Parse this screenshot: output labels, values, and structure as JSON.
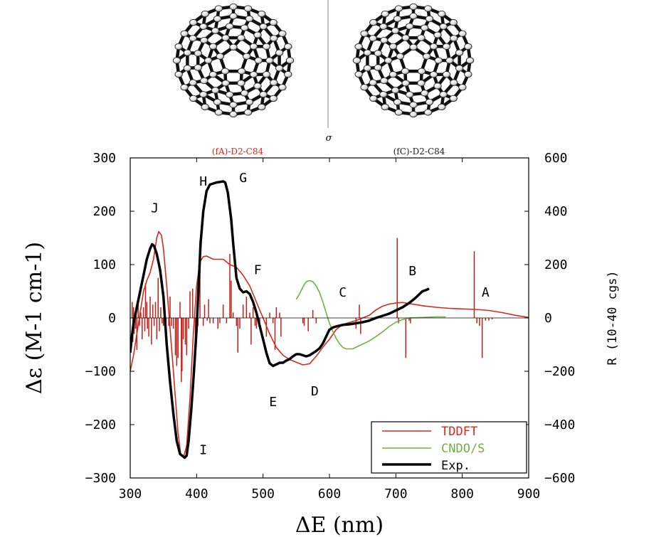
{
  "header": {
    "left_label": "(fA)-D2-C84",
    "right_label": "(fC)-D2-C84",
    "mirror_symbol": "σ"
  },
  "colors": {
    "tddft": "#d42a1e",
    "cndo": "#6db33f",
    "exp": "#000000",
    "sticks": "#c0201a",
    "left_label": "#d42a1e",
    "right_label": "#222222"
  },
  "chart_data": {
    "type": "line",
    "xlabel": "ΔE (nm)",
    "ylabel": "Δε (M-1 cm-1)",
    "y2label": "R (10-40 cgs)",
    "xlim": [
      300,
      900
    ],
    "ylim": [
      -300,
      300
    ],
    "y2lim": [
      -600,
      600
    ],
    "x_ticks": [
      300,
      400,
      500,
      600,
      700,
      800,
      900
    ],
    "y_ticks": [
      -300,
      -200,
      -100,
      0,
      100,
      200,
      300
    ],
    "y2_ticks": [
      -600,
      -400,
      -200,
      0,
      200,
      400,
      600
    ],
    "legend_position": "bottom-right",
    "annotations": [
      {
        "text": "J",
        "x": 337,
        "y": 198
      },
      {
        "text": "H",
        "x": 410,
        "y": 248
      },
      {
        "text": "G",
        "x": 470,
        "y": 255
      },
      {
        "text": "F",
        "x": 492,
        "y": 82
      },
      {
        "text": "C",
        "x": 620,
        "y": 40
      },
      {
        "text": "B",
        "x": 725,
        "y": 80
      },
      {
        "text": "A",
        "x": 835,
        "y": 40
      },
      {
        "text": "E",
        "x": 515,
        "y": -165
      },
      {
        "text": "D",
        "x": 578,
        "y": -145
      },
      {
        "text": "I",
        "x": 410,
        "y": -255
      }
    ],
    "series": [
      {
        "name": "TDDFT",
        "axis": "left",
        "points": [
          [
            300,
            -100
          ],
          [
            305,
            -70
          ],
          [
            310,
            -30
          ],
          [
            315,
            10
          ],
          [
            320,
            50
          ],
          [
            325,
            70
          ],
          [
            330,
            85
          ],
          [
            335,
            110
          ],
          [
            340,
            150
          ],
          [
            343,
            162
          ],
          [
            347,
            155
          ],
          [
            350,
            130
          ],
          [
            355,
            60
          ],
          [
            360,
            -20
          ],
          [
            365,
            -100
          ],
          [
            368,
            -150
          ],
          [
            372,
            -215
          ],
          [
            376,
            -255
          ],
          [
            380,
            -262
          ],
          [
            385,
            -240
          ],
          [
            390,
            -150
          ],
          [
            395,
            -30
          ],
          [
            400,
            60
          ],
          [
            405,
            105
          ],
          [
            410,
            115
          ],
          [
            415,
            116
          ],
          [
            425,
            110
          ],
          [
            440,
            110
          ],
          [
            450,
            100
          ],
          [
            460,
            95
          ],
          [
            470,
            80
          ],
          [
            480,
            60
          ],
          [
            490,
            30
          ],
          [
            500,
            0
          ],
          [
            510,
            -30
          ],
          [
            520,
            -55
          ],
          [
            530,
            -70
          ],
          [
            540,
            -78
          ],
          [
            550,
            -83
          ],
          [
            560,
            -88
          ],
          [
            570,
            -86
          ],
          [
            580,
            -72
          ],
          [
            590,
            -55
          ],
          [
            600,
            -40
          ],
          [
            610,
            -22
          ],
          [
            620,
            -12
          ],
          [
            640,
            -5
          ],
          [
            650,
            0
          ],
          [
            660,
            5
          ],
          [
            670,
            15
          ],
          [
            680,
            22
          ],
          [
            690,
            26
          ],
          [
            700,
            28
          ],
          [
            710,
            29
          ],
          [
            720,
            27
          ],
          [
            740,
            23
          ],
          [
            760,
            20
          ],
          [
            780,
            18
          ],
          [
            800,
            17
          ],
          [
            820,
            16
          ],
          [
            840,
            14
          ],
          [
            860,
            10
          ],
          [
            880,
            5
          ],
          [
            900,
            1
          ]
        ]
      },
      {
        "name": "CNDO/S",
        "axis": "left",
        "points": [
          [
            550,
            35
          ],
          [
            555,
            45
          ],
          [
            560,
            58
          ],
          [
            565,
            68
          ],
          [
            570,
            70
          ],
          [
            575,
            68
          ],
          [
            580,
            60
          ],
          [
            585,
            48
          ],
          [
            590,
            30
          ],
          [
            595,
            10
          ],
          [
            600,
            -10
          ],
          [
            605,
            -25
          ],
          [
            610,
            -38
          ],
          [
            615,
            -48
          ],
          [
            620,
            -55
          ],
          [
            625,
            -58
          ],
          [
            635,
            -58
          ],
          [
            645,
            -52
          ],
          [
            660,
            -43
          ],
          [
            670,
            -35
          ],
          [
            680,
            -26
          ],
          [
            690,
            -16
          ],
          [
            700,
            -8
          ],
          [
            710,
            -3
          ],
          [
            720,
            0
          ],
          [
            740,
            1
          ],
          [
            760,
            2
          ],
          [
            775,
            2
          ]
        ]
      },
      {
        "name": "Exp.",
        "axis": "left",
        "points": [
          [
            300,
            -65
          ],
          [
            302,
            -40
          ],
          [
            305,
            -10
          ],
          [
            310,
            20
          ],
          [
            315,
            50
          ],
          [
            320,
            80
          ],
          [
            325,
            110
          ],
          [
            330,
            130
          ],
          [
            333,
            138
          ],
          [
            336,
            135
          ],
          [
            340,
            120
          ],
          [
            345,
            90
          ],
          [
            350,
            40
          ],
          [
            355,
            -50
          ],
          [
            360,
            -120
          ],
          [
            365,
            -180
          ],
          [
            370,
            -230
          ],
          [
            375,
            -255
          ],
          [
            380,
            -260
          ],
          [
            382,
            -262
          ],
          [
            385,
            -258
          ],
          [
            388,
            -230
          ],
          [
            392,
            -170
          ],
          [
            396,
            -100
          ],
          [
            400,
            -20
          ],
          [
            403,
            60
          ],
          [
            406,
            140
          ],
          [
            410,
            200
          ],
          [
            415,
            238
          ],
          [
            420,
            250
          ],
          [
            425,
            252
          ],
          [
            430,
            254
          ],
          [
            435,
            255
          ],
          [
            440,
            256
          ],
          [
            443,
            254
          ],
          [
            447,
            235
          ],
          [
            452,
            185
          ],
          [
            455,
            140
          ],
          [
            460,
            75
          ],
          [
            465,
            55
          ],
          [
            470,
            48
          ],
          [
            475,
            50
          ],
          [
            480,
            45
          ],
          [
            485,
            30
          ],
          [
            490,
            10
          ],
          [
            495,
            -15
          ],
          [
            500,
            -40
          ],
          [
            505,
            -65
          ],
          [
            510,
            -85
          ],
          [
            515,
            -90
          ],
          [
            520,
            -87
          ],
          [
            525,
            -84
          ],
          [
            530,
            -84
          ],
          [
            535,
            -80
          ],
          [
            540,
            -77
          ],
          [
            545,
            -72
          ],
          [
            550,
            -68
          ],
          [
            555,
            -68
          ],
          [
            560,
            -70
          ],
          [
            565,
            -72
          ],
          [
            570,
            -70
          ],
          [
            575,
            -66
          ],
          [
            580,
            -62
          ],
          [
            585,
            -57
          ],
          [
            590,
            -48
          ],
          [
            595,
            -35
          ],
          [
            600,
            -22
          ],
          [
            605,
            -18
          ],
          [
            610,
            -16
          ],
          [
            620,
            -13
          ],
          [
            630,
            -12
          ],
          [
            640,
            -10
          ],
          [
            650,
            -8
          ],
          [
            660,
            -5
          ],
          [
            670,
            0
          ],
          [
            680,
            4
          ],
          [
            690,
            8
          ],
          [
            700,
            14
          ],
          [
            710,
            20
          ],
          [
            720,
            28
          ],
          [
            725,
            33
          ],
          [
            730,
            38
          ],
          [
            735,
            44
          ],
          [
            740,
            50
          ],
          [
            745,
            52
          ],
          [
            750,
            55
          ]
        ]
      }
    ],
    "rotational_strengths": {
      "axis": "right",
      "sticks": [
        [
          303,
          60
        ],
        [
          304,
          -90
        ],
        [
          305,
          40
        ],
        [
          306,
          -60
        ],
        [
          307,
          20
        ],
        [
          308,
          -40
        ],
        [
          309,
          30
        ],
        [
          310,
          -120
        ],
        [
          312,
          50
        ],
        [
          314,
          -30
        ],
        [
          316,
          20
        ],
        [
          318,
          -80
        ],
        [
          320,
          40
        ],
        [
          322,
          -50
        ],
        [
          323,
          130
        ],
        [
          325,
          60
        ],
        [
          326,
          -40
        ],
        [
          328,
          -70
        ],
        [
          330,
          80
        ],
        [
          332,
          -100
        ],
        [
          334,
          50
        ],
        [
          336,
          -30
        ],
        [
          338,
          60
        ],
        [
          340,
          -80
        ],
        [
          342,
          150
        ],
        [
          344,
          -50
        ],
        [
          346,
          40
        ],
        [
          348,
          -20
        ],
        [
          350,
          -30
        ],
        [
          352,
          40
        ],
        [
          354,
          -20
        ],
        [
          358,
          -30
        ],
        [
          360,
          80
        ],
        [
          362,
          -30
        ],
        [
          365,
          -40
        ],
        [
          368,
          -140
        ],
        [
          370,
          -180
        ],
        [
          372,
          -150
        ],
        [
          375,
          60
        ],
        [
          377,
          -240
        ],
        [
          378,
          -200
        ],
        [
          380,
          -80
        ],
        [
          383,
          -100
        ],
        [
          385,
          -140
        ],
        [
          388,
          -40
        ],
        [
          390,
          100
        ],
        [
          394,
          110
        ],
        [
          398,
          -160
        ],
        [
          400,
          -60
        ],
        [
          402,
          -30
        ],
        [
          405,
          290
        ],
        [
          410,
          -30
        ],
        [
          412,
          50
        ],
        [
          416,
          -10
        ],
        [
          418,
          70
        ],
        [
          420,
          -20
        ],
        [
          425,
          -20
        ],
        [
          432,
          -40
        ],
        [
          435,
          -20
        ],
        [
          440,
          50
        ],
        [
          445,
          -20
        ],
        [
          450,
          240
        ],
        [
          452,
          140
        ],
        [
          455,
          20
        ],
        [
          460,
          -30
        ],
        [
          462,
          -130
        ],
        [
          465,
          -40
        ],
        [
          470,
          50
        ],
        [
          475,
          80
        ],
        [
          480,
          20
        ],
        [
          482,
          -100
        ],
        [
          485,
          40
        ],
        [
          488,
          -30
        ],
        [
          490,
          -40
        ],
        [
          495,
          -20
        ],
        [
          505,
          -70
        ],
        [
          510,
          20
        ],
        [
          515,
          -20
        ],
        [
          518,
          -120
        ],
        [
          520,
          40
        ],
        [
          525,
          20
        ],
        [
          527,
          -70
        ],
        [
          560,
          -20
        ],
        [
          562,
          -30
        ],
        [
          568,
          -50
        ],
        [
          575,
          30
        ],
        [
          580,
          -20
        ],
        [
          640,
          -40
        ],
        [
          645,
          50
        ],
        [
          647,
          -60
        ],
        [
          702,
          300
        ],
        [
          704,
          -20
        ],
        [
          715,
          -150
        ],
        [
          720,
          -10
        ],
        [
          722,
          -20
        ],
        [
          818,
          250
        ],
        [
          822,
          -20
        ],
        [
          826,
          -30
        ],
        [
          830,
          -150
        ],
        [
          835,
          -10
        ],
        [
          840,
          -10
        ],
        [
          845,
          -5
        ]
      ]
    }
  }
}
